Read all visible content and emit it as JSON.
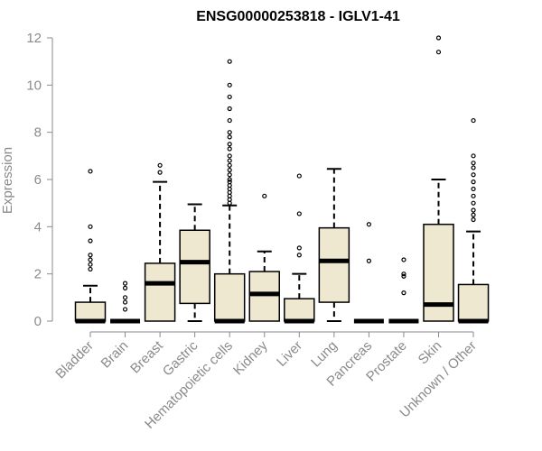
{
  "chart_data": {
    "type": "boxplot",
    "title": "ENSG00000253818 - IGLV1-41",
    "ylabel": "Expression",
    "xlabel": "",
    "ylim": [
      0,
      12
    ],
    "yticks": [
      0,
      2,
      4,
      6,
      8,
      10,
      12
    ],
    "box_color": "#EEE8D0",
    "categories": [
      "Bladder",
      "Brain",
      "Breast",
      "Gastric",
      "Hematopoietic cells",
      "Kidney",
      "Liver",
      "Lung",
      "Pancreas",
      "Prostate",
      "Skin",
      "Unknown / Other"
    ],
    "boxes": [
      {
        "q1": 0.0,
        "median": 0.0,
        "q3": 0.8,
        "whisker_low": 0.0,
        "whisker_high": 1.5,
        "outliers": [
          2.2,
          2.4,
          2.6,
          2.8,
          3.4,
          4.0,
          6.35
        ]
      },
      {
        "q1": 0.0,
        "median": 0.0,
        "q3": 0.0,
        "whisker_low": 0.0,
        "whisker_high": 0.0,
        "outliers": [
          0.5,
          0.8,
          1.0,
          1.4,
          1.6
        ]
      },
      {
        "q1": 0.0,
        "median": 1.6,
        "q3": 2.45,
        "whisker_low": 0.0,
        "whisker_high": 5.9,
        "outliers": [
          6.3,
          6.6
        ]
      },
      {
        "q1": 0.75,
        "median": 2.5,
        "q3": 3.85,
        "whisker_low": 0.0,
        "whisker_high": 4.95,
        "outliers": []
      },
      {
        "q1": 0.0,
        "median": 0.0,
        "q3": 2.0,
        "whisker_low": 0.0,
        "whisker_high": 4.9,
        "outliers": [
          5.0,
          5.15,
          5.3,
          5.45,
          5.6,
          5.75,
          5.9,
          6.0,
          6.2,
          6.4,
          6.6,
          6.8,
          7.0,
          7.3,
          7.5,
          7.8,
          8.0,
          8.5,
          9.0,
          9.5,
          10.0,
          11.0
        ]
      },
      {
        "q1": 0.0,
        "median": 1.15,
        "q3": 2.1,
        "whisker_low": 0.0,
        "whisker_high": 2.95,
        "outliers": [
          5.3
        ]
      },
      {
        "q1": 0.0,
        "median": 0.0,
        "q3": 0.95,
        "whisker_low": 0.0,
        "whisker_high": 2.0,
        "outliers": [
          2.8,
          3.1,
          4.55,
          6.15
        ]
      },
      {
        "q1": 0.8,
        "median": 2.55,
        "q3": 3.95,
        "whisker_low": 0.0,
        "whisker_high": 6.45,
        "outliers": []
      },
      {
        "q1": 0.0,
        "median": 0.0,
        "q3": 0.0,
        "whisker_low": 0.0,
        "whisker_high": 0.0,
        "outliers": [
          2.55,
          4.1
        ]
      },
      {
        "q1": 0.0,
        "median": 0.0,
        "q3": 0.0,
        "whisker_low": 0.0,
        "whisker_high": 0.0,
        "outliers": [
          1.2,
          1.9,
          2.0,
          2.6
        ]
      },
      {
        "q1": 0.0,
        "median": 0.7,
        "q3": 4.1,
        "whisker_low": 0.0,
        "whisker_high": 6.0,
        "outliers": [
          11.4,
          12.0
        ]
      },
      {
        "q1": 0.0,
        "median": 0.0,
        "q3": 1.55,
        "whisker_low": 0.0,
        "whisker_high": 3.8,
        "outliers": [
          4.3,
          4.5,
          4.7,
          5.0,
          5.3,
          5.6,
          5.9,
          6.2,
          6.5,
          6.7,
          7.0,
          8.5
        ]
      }
    ]
  }
}
